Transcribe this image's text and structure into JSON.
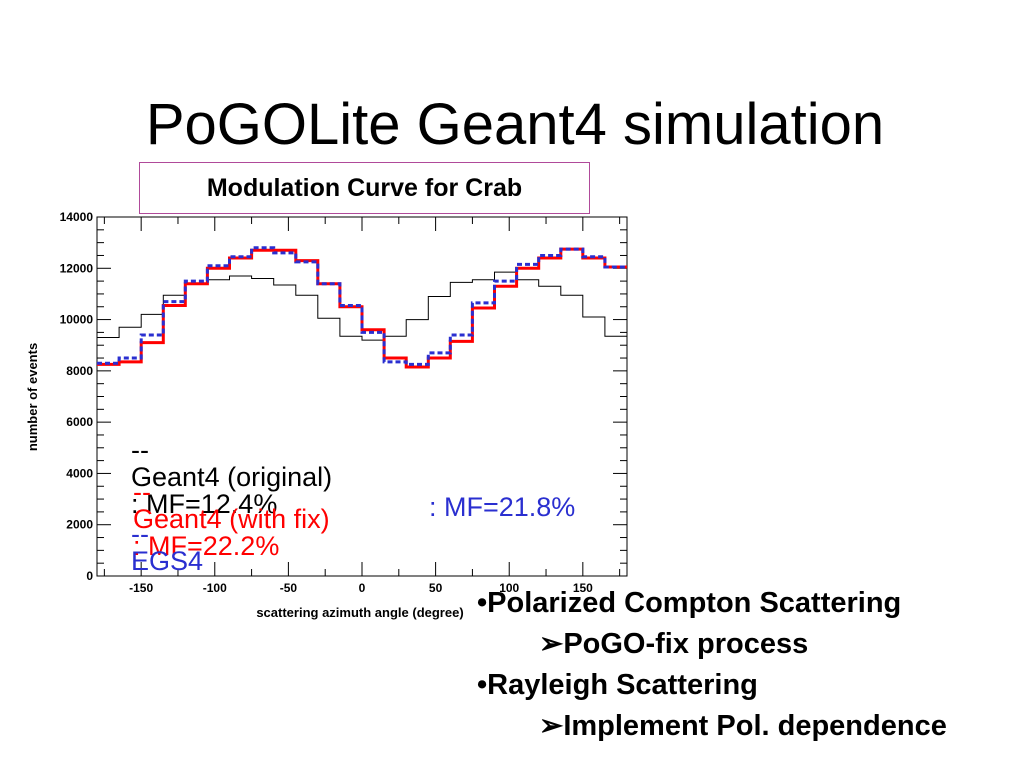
{
  "slide": {
    "title": "PoGOLite Geant4 simulation"
  },
  "chart_data": {
    "type": "step-line",
    "title": "Modulation Curve for Crab",
    "xlabel": "scattering azimuth angle (degree)",
    "ylabel": "number of events",
    "xlim": [
      -180,
      180
    ],
    "ylim": [
      0,
      14000
    ],
    "x_ticks": [
      -150,
      -100,
      -50,
      0,
      50,
      100,
      150
    ],
    "y_ticks": [
      0,
      2000,
      4000,
      6000,
      8000,
      10000,
      12000,
      14000
    ],
    "bin_edges": [
      -180,
      -165,
      -150,
      -135,
      -120,
      -105,
      -90,
      -75,
      -60,
      -45,
      -30,
      -15,
      0,
      15,
      30,
      45,
      60,
      75,
      90,
      105,
      120,
      135,
      150,
      165,
      180
    ],
    "series": [
      {
        "name": "Geant4 (original)",
        "color": "#000000",
        "style": "thin-solid",
        "values": [
          9300,
          9700,
          10200,
          10950,
          11400,
          11550,
          11700,
          11600,
          11350,
          10950,
          10050,
          9350,
          9200,
          9350,
          10000,
          10900,
          11450,
          11550,
          11850,
          11550,
          11300,
          10950,
          10100,
          9350
        ]
      },
      {
        "name": "Geant4 (with fix)",
        "color": "#ff0000",
        "style": "thick-solid",
        "values": [
          8250,
          8350,
          9100,
          10550,
          11400,
          12000,
          12400,
          12700,
          12700,
          12300,
          11400,
          10500,
          9600,
          8500,
          8150,
          8500,
          9150,
          10450,
          11300,
          12000,
          12400,
          12750,
          12400,
          12050
        ]
      },
      {
        "name": "EGS4",
        "color": "#2a2fd0",
        "style": "dotted",
        "values": [
          8300,
          8500,
          9400,
          10700,
          11500,
          12100,
          12450,
          12800,
          12600,
          12250,
          11400,
          10550,
          9500,
          8350,
          8250,
          8700,
          9400,
          10650,
          11500,
          12150,
          12500,
          12750,
          12450,
          12050
        ]
      }
    ],
    "legend": [
      {
        "prefix": "--",
        "label": "Geant4 (original)",
        "value": ": MF=12.4%",
        "color": "#000000"
      },
      {
        "prefix": "--",
        "label": "Geant4 (with fix)",
        "value": ": MF=22.2%",
        "color": "#ff0000"
      },
      {
        "prefix": "--",
        "label": "EGS4",
        "value": ": MF=21.8%",
        "color": "#2a2fd0"
      }
    ]
  },
  "bullets": [
    {
      "marker": "•",
      "text": "Polarized Compton Scattering",
      "level": 1
    },
    {
      "marker": "➢",
      "text": "PoGO-fix process",
      "level": 2
    },
    {
      "marker": "•",
      "text": "Rayleigh Scattering",
      "level": 1
    },
    {
      "marker": "➢",
      "text": "Implement Pol. dependence",
      "level": 2
    }
  ]
}
